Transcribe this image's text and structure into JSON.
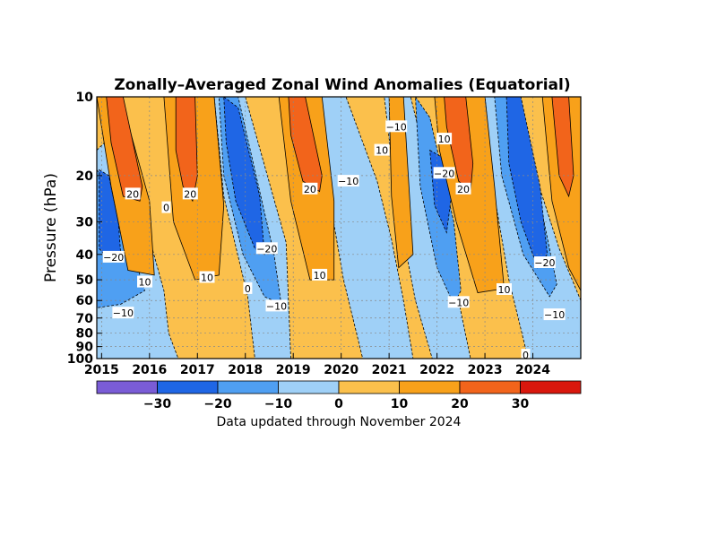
{
  "chart_data": {
    "type": "heatmap",
    "title": "Zonally–Averaged Zonal Wind Anomalies (Equatorial)",
    "ylabel": "Pressure (hPa)",
    "xlabel": "",
    "y_scale": "log",
    "y_reversed": true,
    "ylim": [
      100,
      10
    ],
    "xlim": [
      2014.9,
      2025.0
    ],
    "x_tick_labels": [
      "2015",
      "2016",
      "2017",
      "2018",
      "2019",
      "2020",
      "2021",
      "2022",
      "2023",
      "2024"
    ],
    "x_tick_values": [
      2015,
      2016,
      2017,
      2018,
      2019,
      2020,
      2021,
      2022,
      2023,
      2024
    ],
    "y_tick_labels": [
      "10",
      "20",
      "30",
      "40",
      "50",
      "60",
      "70",
      "80",
      "90",
      "100"
    ],
    "y_tick_values": [
      10,
      20,
      30,
      40,
      50,
      60,
      70,
      80,
      90,
      100
    ],
    "grid": true,
    "colorbar": {
      "levels": [
        -30,
        -20,
        -10,
        0,
        10,
        20,
        30
      ],
      "tick_labels": [
        "−30",
        "−20",
        "−10",
        "0",
        "10",
        "20",
        "30"
      ],
      "colors": [
        "#7a5cd6",
        "#1f66e5",
        "#4f9ff2",
        "#9fd0f7",
        "#fbc04c",
        "#f8a11a",
        "#f2641b",
        "#d9170d"
      ]
    },
    "contour_labels": [
      {
        "text": "20",
        "t": 2015.65,
        "p": 23.5
      },
      {
        "text": "−20",
        "t": 2015.25,
        "p": 41
      },
      {
        "text": "10",
        "t": 2015.9,
        "p": 51
      },
      {
        "text": "−10",
        "t": 2015.45,
        "p": 67
      },
      {
        "text": "0",
        "t": 2016.35,
        "p": 26.5
      },
      {
        "text": "20",
        "t": 2016.85,
        "p": 23.5
      },
      {
        "text": "10",
        "t": 2017.2,
        "p": 49
      },
      {
        "text": "0",
        "t": 2018.05,
        "p": 54
      },
      {
        "text": "−20",
        "t": 2018.45,
        "p": 38
      },
      {
        "text": "−10",
        "t": 2018.65,
        "p": 63
      },
      {
        "text": "20",
        "t": 2019.35,
        "p": 22.5
      },
      {
        "text": "10",
        "t": 2019.55,
        "p": 48
      },
      {
        "text": "−10",
        "t": 2020.15,
        "p": 21
      },
      {
        "text": "−10",
        "t": 2021.15,
        "p": 13
      },
      {
        "text": "10",
        "t": 2020.85,
        "p": 16
      },
      {
        "text": "10",
        "t": 2022.15,
        "p": 14.5
      },
      {
        "text": "−20",
        "t": 2022.15,
        "p": 19.6
      },
      {
        "text": "20",
        "t": 2022.55,
        "p": 22.5
      },
      {
        "text": "−10",
        "t": 2022.45,
        "p": 61
      },
      {
        "text": "10",
        "t": 2023.4,
        "p": 54.5
      },
      {
        "text": "0",
        "t": 2023.85,
        "p": 97
      },
      {
        "text": "−20",
        "t": 2024.25,
        "p": 43
      },
      {
        "text": "−10",
        "t": 2024.45,
        "p": 68
      }
    ],
    "footnote": "Data updated through November 2024"
  }
}
